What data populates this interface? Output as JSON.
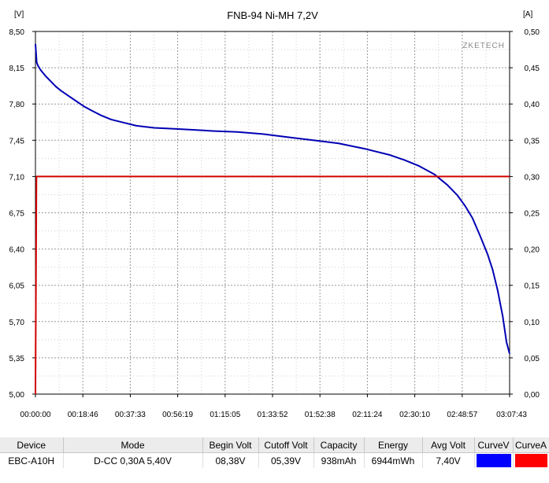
{
  "chart_data": {
    "type": "line",
    "title": "FNB-94 Ni-MH 7,2V",
    "watermark": "ZKETECH",
    "ylabel_left": "[V]",
    "ylabel_right": "[A]",
    "y_left_ticks": [
      "8,50",
      "8,15",
      "7,80",
      "7,45",
      "7,10",
      "6,75",
      "6,40",
      "6,05",
      "5,70",
      "5,35",
      "5,00"
    ],
    "y_right_ticks": [
      "0,50",
      "0,45",
      "0,40",
      "0,35",
      "0,30",
      "0,25",
      "0,20",
      "0,15",
      "0,10",
      "0,05",
      "0,00"
    ],
    "x_ticks": [
      "00:00:00",
      "00:18:46",
      "00:37:33",
      "00:56:19",
      "01:15:05",
      "01:33:52",
      "01:52:38",
      "02:11:24",
      "02:30:10",
      "02:48:57",
      "03:07:43"
    ],
    "xlim": [
      0,
      187.72
    ],
    "ylim_left": [
      5.0,
      8.5
    ],
    "ylim_right": [
      0.0,
      0.5
    ],
    "grid": true,
    "series": [
      {
        "name": "CurveV",
        "axis": "left",
        "color": "#0000b4",
        "x": [
          0,
          0.5,
          1,
          2,
          4,
          6,
          8,
          10,
          13,
          16,
          19,
          22,
          26,
          30,
          35,
          40,
          47,
          55,
          63,
          70,
          80,
          90,
          100,
          110,
          120,
          130,
          140,
          146,
          152,
          158,
          163,
          167,
          170,
          173,
          176,
          179,
          181,
          183,
          185,
          186.5,
          187.72
        ],
        "values": [
          8.38,
          8.2,
          8.17,
          8.13,
          8.07,
          8.02,
          7.97,
          7.93,
          7.88,
          7.83,
          7.78,
          7.74,
          7.69,
          7.65,
          7.62,
          7.59,
          7.57,
          7.56,
          7.55,
          7.54,
          7.53,
          7.51,
          7.48,
          7.45,
          7.42,
          7.37,
          7.31,
          7.26,
          7.2,
          7.12,
          7.02,
          6.92,
          6.82,
          6.7,
          6.53,
          6.35,
          6.2,
          6.0,
          5.75,
          5.5,
          5.39
        ]
      },
      {
        "name": "CurveA",
        "axis": "right",
        "color": "#d20000",
        "x": [
          0,
          0.4,
          187.72
        ],
        "values": [
          0.0,
          0.3,
          0.3
        ]
      }
    ]
  },
  "table": {
    "headers": [
      "Device",
      "Mode",
      "Begin Volt",
      "Cutoff Volt",
      "Capacity",
      "Energy",
      "Avg Volt",
      "CurveV",
      "CurveA"
    ],
    "row": [
      "EBC-A10H",
      "D-CC  0,30A  5,40V",
      "08,38V",
      "05,39V",
      "938mAh",
      "6944mWh",
      "7,40V",
      "",
      ""
    ],
    "swatch_colors": [
      "#0000ff",
      "#ff0000"
    ]
  }
}
